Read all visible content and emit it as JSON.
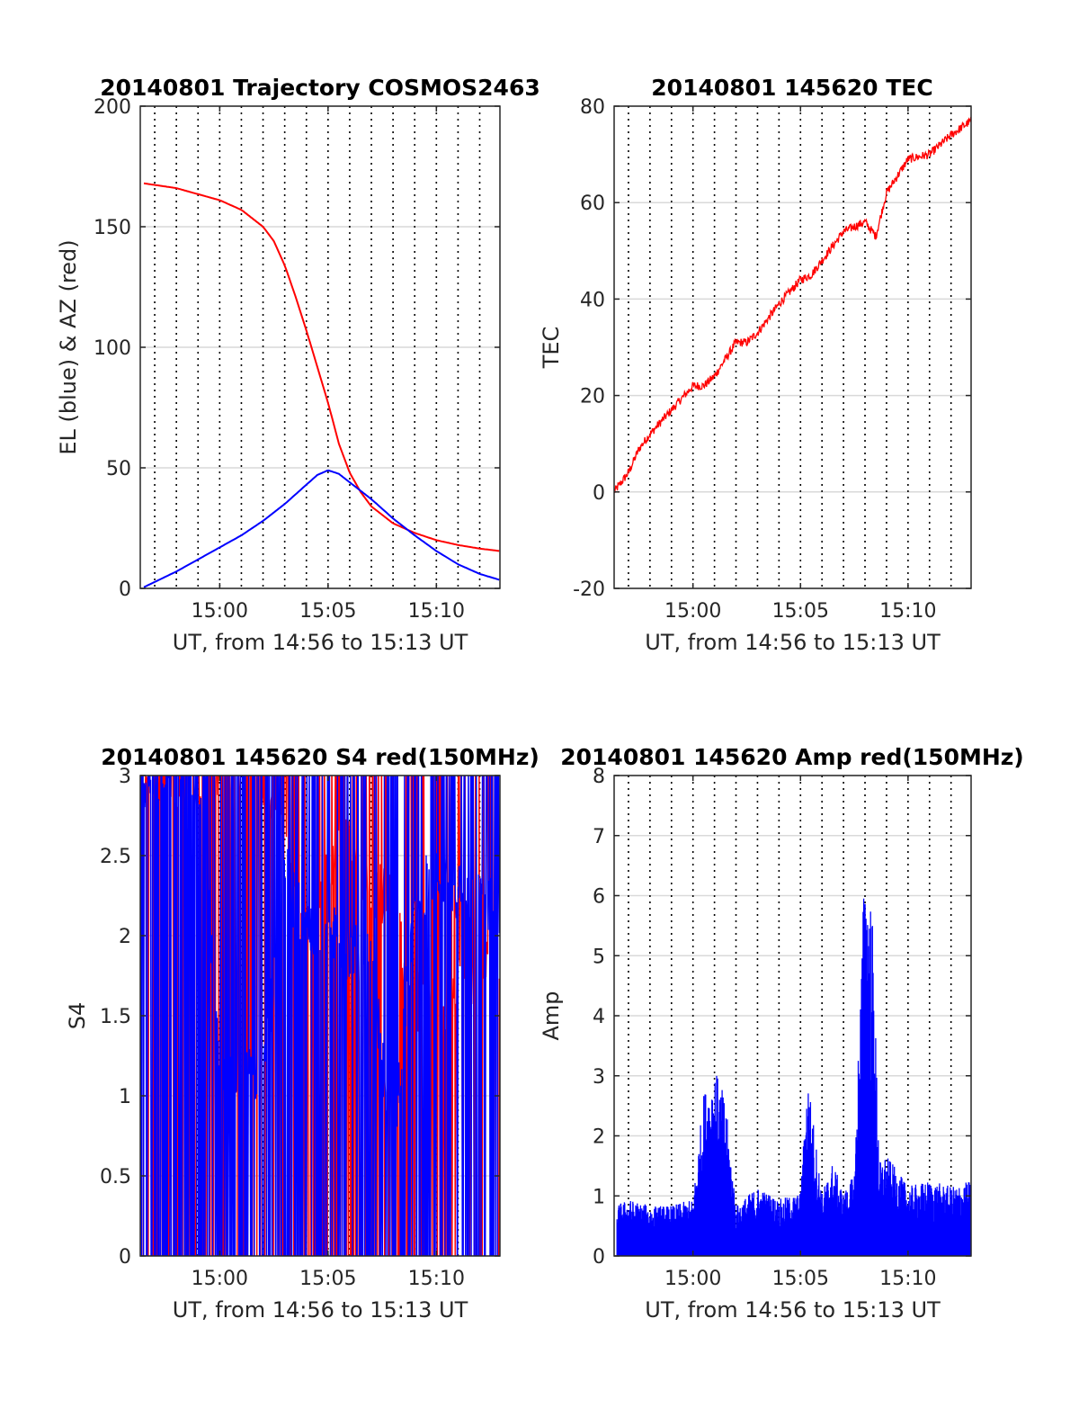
{
  "figure": {
    "background": "#ffffff"
  },
  "colors": {
    "red": "#ff0000",
    "blue": "#0000ff",
    "grid": "#d9d9d9",
    "frame": "#262626"
  },
  "chart_data": [
    {
      "id": "trajectory",
      "type": "line",
      "title": "20140801 Trajectory COSMOS2463",
      "xlabel": "UT, from 14:56 to 15:13 UT",
      "ylabel": "EL (blue) & AZ (red)",
      "xlim": [
        "14:56:20",
        "15:12:56"
      ],
      "ylim": [
        0,
        200
      ],
      "yticks": [
        0,
        50,
        100,
        150,
        200
      ],
      "ytick_labels": [
        "0",
        "50",
        "100",
        "150",
        "200"
      ],
      "xticks": [
        "15:00",
        "15:05",
        "15:10"
      ],
      "grid": true,
      "dotted_verticals": "every 1 minute",
      "series": [
        {
          "color": "red",
          "x": [
            "14:56:30",
            "14:58",
            "15:00",
            "15:01",
            "15:02",
            "15:02:30",
            "15:03",
            "15:03:30",
            "15:04",
            "15:04:30",
            "15:05",
            "15:05:30",
            "15:06",
            "15:06:30",
            "15:07",
            "15:08",
            "15:09",
            "15:10",
            "15:11",
            "15:12",
            "15:12:56"
          ],
          "values": [
            168,
            166,
            161,
            157,
            150,
            144,
            134,
            121,
            107,
            92,
            77,
            60,
            48,
            40,
            34,
            27,
            23,
            20,
            18,
            16.5,
            15.5
          ]
        },
        {
          "color": "blue",
          "x": [
            "14:56:30",
            "14:58",
            "15:00",
            "15:01",
            "15:02",
            "15:03",
            "15:04",
            "15:04:30",
            "15:05",
            "15:05:30",
            "15:06",
            "15:07",
            "15:08",
            "15:09",
            "15:10",
            "15:11",
            "15:12",
            "15:12:56"
          ],
          "values": [
            0.5,
            7,
            17,
            22,
            28,
            35,
            43,
            47,
            49,
            47.5,
            44,
            37,
            29,
            22,
            15.5,
            10,
            6,
            3.5
          ]
        }
      ]
    },
    {
      "id": "tec",
      "type": "line",
      "title": "20140801 145620 TEC",
      "xlabel": "UT, from 14:56 to 15:13 UT",
      "ylabel": "TEC",
      "xlim": [
        "14:56:20",
        "15:12:56"
      ],
      "ylim": [
        -20,
        80
      ],
      "yticks": [
        -20,
        0,
        20,
        40,
        60,
        80
      ],
      "ytick_labels": [
        "-20",
        "0",
        "20",
        "40",
        "60",
        "80"
      ],
      "xticks": [
        "15:00",
        "15:05",
        "15:10"
      ],
      "grid": true,
      "dotted_verticals": "every 1 minute",
      "series": [
        {
          "color": "red",
          "x": [
            "14:56:20",
            "14:57",
            "14:57:30",
            "14:58",
            "14:59",
            "15:00",
            "15:00:30",
            "15:01",
            "15:02",
            "15:02:30",
            "15:03",
            "15:04",
            "15:05",
            "15:05:30",
            "15:06",
            "15:07",
            "15:08",
            "15:08:30",
            "15:09",
            "15:10",
            "15:11",
            "15:12",
            "15:12:56"
          ],
          "values": [
            0,
            4,
            9,
            12,
            17,
            22,
            22,
            24,
            31,
            31,
            33,
            39,
            44,
            45,
            48,
            54,
            56,
            53,
            62,
            69,
            70,
            74,
            77
          ]
        }
      ]
    },
    {
      "id": "s4",
      "type": "line",
      "title": "20140801 145620 S4 red(150MHz)",
      "xlabel": "UT, from 14:56 to 15:13 UT",
      "ylabel": "S4",
      "xlim": [
        "14:56:20",
        "15:12:56"
      ],
      "ylim": [
        0,
        3
      ],
      "yticks": [
        0,
        0.5,
        1,
        1.5,
        2,
        2.5,
        3
      ],
      "ytick_labels": [
        "0",
        "0.5",
        "1",
        "1.5",
        "2",
        "2.5",
        "3"
      ],
      "xticks": [
        "15:00",
        "15:05",
        "15:10"
      ],
      "grid": true,
      "dotted_verticals": "every 1 minute",
      "series": [
        {
          "color": "red",
          "note_values": "rapid oscillation between 0 and 3 (clipped)",
          "x": [
            "14:56:20",
            "14:59",
            "15:00",
            "15:01",
            "15:02",
            "15:04",
            "15:06",
            "15:07",
            "15:08",
            "15:09",
            "15:10",
            "15:11",
            "15:12",
            "15:12:56"
          ],
          "values": [
            3,
            3,
            3,
            3,
            3,
            2.1,
            2.6,
            2.3,
            2.2,
            1.6,
            1.5,
            1.7,
            1.8,
            1.8
          ]
        },
        {
          "color": "blue",
          "note_values": "rapid oscillation between 0 and 3 (clipped)",
          "x": [
            "14:56:20",
            "14:59",
            "15:00",
            "15:01",
            "15:02",
            "15:03",
            "15:04",
            "15:05",
            "15:06",
            "15:07",
            "15:08",
            "15:09",
            "15:10",
            "15:11",
            "15:12",
            "15:12:56"
          ],
          "values": [
            3,
            3,
            1.2,
            1.1,
            1.1,
            2.4,
            2.0,
            2.1,
            1.9,
            1.8,
            0.7,
            2.2,
            2.4,
            2.3,
            2.2,
            2.2
          ]
        }
      ]
    },
    {
      "id": "amp",
      "type": "line",
      "title": "20140801 145620 Amp red(150MHz)",
      "xlabel": "UT, from 14:56 to 15:13 UT",
      "ylabel": "Amp",
      "xlim": [
        "14:56:20",
        "15:12:56"
      ],
      "ylim": [
        0,
        8
      ],
      "yticks": [
        0,
        1,
        2,
        3,
        4,
        5,
        6,
        7,
        8
      ],
      "ytick_labels": [
        "0",
        "1",
        "2",
        "3",
        "4",
        "5",
        "6",
        "7",
        "8"
      ],
      "xticks": [
        "15:00",
        "15:05",
        "15:10"
      ],
      "grid": true,
      "dotted_verticals": "every 1 minute",
      "series": [
        {
          "color": "blue",
          "x": [
            "14:56:20",
            "14:57",
            "14:58",
            "14:59",
            "15:00",
            "15:00:30",
            "15:01",
            "15:01:30",
            "15:02",
            "15:03",
            "15:04",
            "15:05",
            "15:05:20",
            "15:06",
            "15:06:30",
            "15:07",
            "15:07:30",
            "15:08",
            "15:08:20",
            "15:08:40",
            "15:09",
            "15:10",
            "15:11",
            "15:12",
            "15:12:56"
          ],
          "values": [
            0.8,
            0.9,
            0.8,
            0.8,
            0.9,
            2.6,
            3.0,
            2.5,
            0.8,
            1.1,
            0.9,
            1.0,
            2.9,
            1.0,
            1.5,
            1.0,
            1.3,
            6.5,
            5.5,
            1.5,
            1.6,
            1.1,
            1.2,
            1.1,
            1.2
          ]
        }
      ]
    }
  ]
}
